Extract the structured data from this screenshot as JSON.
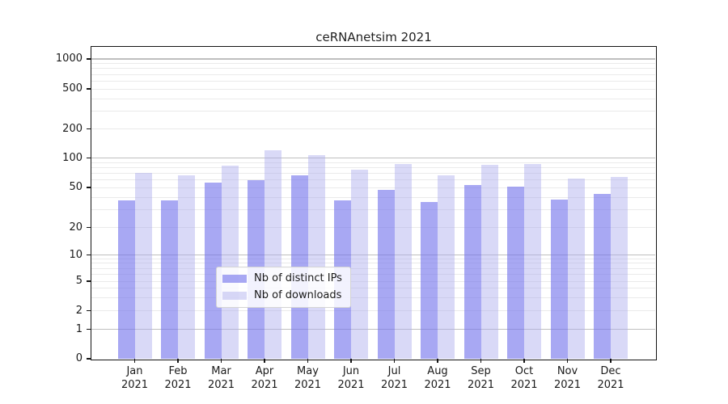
{
  "chart_data": {
    "type": "bar",
    "title": "ceRNAnetsim 2021",
    "categories": [
      "Jan",
      "Feb",
      "Mar",
      "Apr",
      "May",
      "Jun",
      "Jul",
      "Aug",
      "Sep",
      "Oct",
      "Nov",
      "Dec"
    ],
    "category_year": "2021",
    "series": [
      {
        "name": "Nb of distinct IPs",
        "color": "rgba(115,115,235,0.62)",
        "color_on_white": "#aaaaf3",
        "values": [
          37,
          37,
          56,
          59,
          66,
          37,
          47,
          36,
          53,
          51,
          38,
          43
        ]
      },
      {
        "name": "Nb of downloads",
        "color": "rgba(170,170,238,0.45)",
        "color_on_white": "#d9d9f7",
        "values": [
          70,
          67,
          84,
          120,
          108,
          76,
          86,
          66,
          85,
          87,
          62,
          64
        ]
      }
    ],
    "xlabel": "",
    "ylabel": "",
    "yscale": "symlog",
    "ylim": [
      0,
      1000
    ],
    "yticks": [
      0,
      1,
      2,
      5,
      10,
      20,
      50,
      100,
      200,
      500,
      1000
    ],
    "grid": "horizontal major+minor, log spaced",
    "legend_position": "lower center inside plot",
    "major_grid_color": "#bfbfbf",
    "minor_grid_color": "#eaeaea",
    "frame_color": "#141414"
  }
}
